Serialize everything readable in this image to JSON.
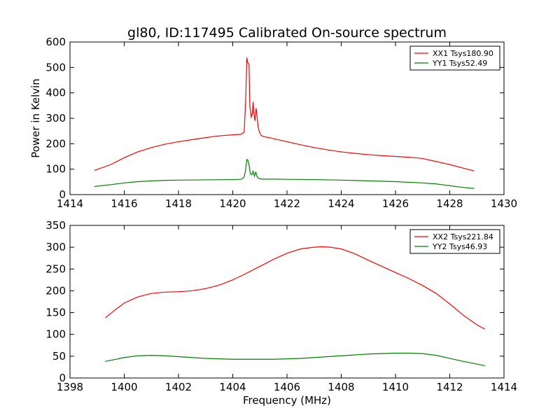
{
  "chart_data": [
    {
      "type": "line",
      "title": "gl80, ID:117495 Calibrated On-source spectrum",
      "xlabel": "",
      "ylabel": "Power in Kelvin",
      "xlim": [
        1414,
        1430
      ],
      "ylim": [
        0,
        600
      ],
      "xticks": [
        1414,
        1416,
        1418,
        1420,
        1422,
        1424,
        1426,
        1428,
        1430
      ],
      "yticks": [
        0,
        100,
        200,
        300,
        400,
        500,
        600
      ],
      "grid": false,
      "legend_position": "top-right",
      "series": [
        {
          "name": "XX1 Tsys180.90",
          "color": "#ff0000",
          "x": [
            1414.9,
            1415.5,
            1416.0,
            1416.5,
            1417.0,
            1417.5,
            1418.0,
            1418.5,
            1419.0,
            1419.5,
            1420.0,
            1420.3,
            1420.42,
            1420.48,
            1420.52,
            1420.55,
            1420.6,
            1420.63,
            1420.68,
            1420.72,
            1420.75,
            1420.78,
            1420.82,
            1420.86,
            1420.9,
            1420.93,
            1420.97,
            1421.05,
            1421.15,
            1421.5,
            1422.0,
            1422.5,
            1423.0,
            1423.5,
            1424.0,
            1424.5,
            1425.0,
            1425.5,
            1426.0,
            1426.5,
            1427.0,
            1427.5,
            1428.0,
            1428.5,
            1428.9
          ],
          "y": [
            95,
            118,
            145,
            168,
            185,
            198,
            208,
            216,
            224,
            231,
            235,
            237,
            245,
            380,
            538,
            520,
            512,
            350,
            305,
            315,
            365,
            320,
            290,
            340,
            305,
            270,
            250,
            232,
            228,
            220,
            208,
            196,
            185,
            176,
            168,
            162,
            157,
            153,
            150,
            147,
            142,
            130,
            118,
            104,
            93
          ]
        },
        {
          "name": "YY1 Tsys52.49",
          "color": "#008000",
          "x": [
            1414.9,
            1415.5,
            1416.0,
            1416.5,
            1417.0,
            1417.5,
            1418.0,
            1419.0,
            1420.0,
            1420.3,
            1420.42,
            1420.48,
            1420.52,
            1420.56,
            1420.6,
            1420.65,
            1420.7,
            1420.75,
            1420.8,
            1420.85,
            1420.9,
            1420.95,
            1421.0,
            1421.1,
            1421.5,
            1422.0,
            1423.0,
            1424.0,
            1425.0,
            1426.0,
            1427.0,
            1427.5,
            1428.0,
            1428.5,
            1428.9
          ],
          "y": [
            32,
            39,
            46,
            51,
            54,
            56,
            57,
            58,
            59,
            60,
            68,
            100,
            138,
            135,
            118,
            82,
            78,
            92,
            72,
            88,
            70,
            64,
            62,
            61,
            61,
            60,
            59,
            57,
            54,
            51,
            46,
            42,
            35,
            28,
            24
          ]
        }
      ]
    },
    {
      "type": "line",
      "title": "",
      "xlabel": "Frequency (MHz)",
      "ylabel": "",
      "xlim": [
        1398,
        1414
      ],
      "ylim": [
        0,
        350
      ],
      "xticks": [
        1398,
        1400,
        1402,
        1404,
        1406,
        1408,
        1410,
        1412,
        1414
      ],
      "yticks": [
        0,
        50,
        100,
        150,
        200,
        250,
        300,
        350
      ],
      "grid": false,
      "legend_position": "top-right",
      "series": [
        {
          "name": "XX2 Tsys221.84",
          "color": "#ff0000",
          "x": [
            1399.3,
            1399.7,
            1400.0,
            1400.5,
            1401.0,
            1401.5,
            1402.0,
            1402.5,
            1403.0,
            1403.5,
            1404.0,
            1404.5,
            1405.0,
            1405.5,
            1406.0,
            1406.5,
            1407.0,
            1407.3,
            1407.6,
            1408.0,
            1408.5,
            1409.0,
            1409.5,
            1410.0,
            1410.5,
            1411.0,
            1411.5,
            1412.0,
            1412.5,
            1413.0,
            1413.3
          ],
          "y": [
            138,
            158,
            172,
            186,
            194,
            197,
            198,
            200,
            205,
            213,
            225,
            240,
            256,
            272,
            286,
            296,
            300,
            301,
            300,
            296,
            285,
            270,
            256,
            242,
            228,
            212,
            194,
            170,
            144,
            122,
            112
          ]
        },
        {
          "name": "YY2 Tsys46.93",
          "color": "#008000",
          "x": [
            1399.3,
            1399.7,
            1400.0,
            1400.5,
            1401.0,
            1401.5,
            1402.0,
            1402.5,
            1403.0,
            1403.5,
            1404.0,
            1404.5,
            1405.0,
            1405.5,
            1406.0,
            1406.5,
            1407.0,
            1407.5,
            1408.0,
            1408.5,
            1409.0,
            1409.5,
            1410.0,
            1410.5,
            1411.0,
            1411.5,
            1412.0,
            1412.5,
            1413.0,
            1413.3
          ],
          "y": [
            38,
            43,
            47,
            51,
            52,
            51,
            49,
            47,
            45,
            44,
            43,
            43,
            43,
            43,
            44,
            45,
            47,
            49,
            51,
            53,
            55,
            56,
            57,
            57,
            56,
            52,
            45,
            38,
            32,
            28
          ]
        }
      ]
    }
  ]
}
